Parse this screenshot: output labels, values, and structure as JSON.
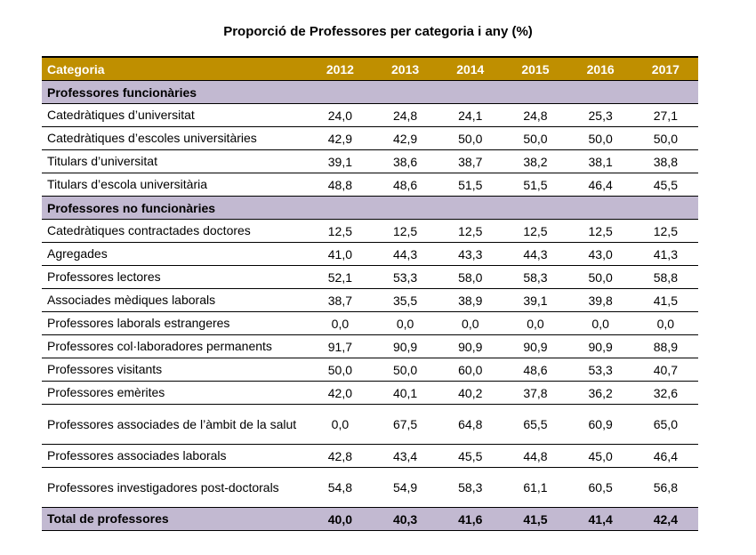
{
  "title": "Proporció de Professores per categoria i any (%)",
  "header": {
    "category": "Categoria",
    "years": [
      "2012",
      "2013",
      "2014",
      "2015",
      "2016",
      "2017"
    ]
  },
  "colors": {
    "header_bg": "#bf8f00",
    "section_bg": "#c2b9d1"
  },
  "sections": [
    {
      "label": "Professores funcionàries",
      "rows": [
        {
          "label": "Catedràtiques d’universitat",
          "values": [
            "24,0",
            "24,8",
            "24,1",
            "24,8",
            "25,3",
            "27,1"
          ]
        },
        {
          "label": "Catedràtiques d’escoles universitàries",
          "values": [
            "42,9",
            "42,9",
            "50,0",
            "50,0",
            "50,0",
            "50,0"
          ]
        },
        {
          "label": "Titulars d’universitat",
          "values": [
            "39,1",
            "38,6",
            "38,7",
            "38,2",
            "38,1",
            "38,8"
          ]
        },
        {
          "label": "Titulars d’escola universitària",
          "values": [
            "48,8",
            "48,6",
            "51,5",
            "51,5",
            "46,4",
            "45,5"
          ]
        }
      ]
    },
    {
      "label": "Professores no funcionàries",
      "rows": [
        {
          "label": "Catedràtiques contractades doctores",
          "values": [
            "12,5",
            "12,5",
            "12,5",
            "12,5",
            "12,5",
            "12,5"
          ]
        },
        {
          "label": "Agregades",
          "values": [
            "41,0",
            "44,3",
            "43,3",
            "44,3",
            "43,0",
            "41,3"
          ]
        },
        {
          "label": "Professores lectores",
          "values": [
            "52,1",
            "53,3",
            "58,0",
            "58,3",
            "50,0",
            "58,8"
          ]
        },
        {
          "label": "Associades mèdiques laborals",
          "values": [
            "38,7",
            "35,5",
            "38,9",
            "39,1",
            "39,8",
            "41,5"
          ]
        },
        {
          "label": "Professores laborals estrangeres",
          "values": [
            "0,0",
            "0,0",
            "0,0",
            "0,0",
            "0,0",
            "0,0"
          ]
        },
        {
          "label": "Professores col·laboradores permanents",
          "values": [
            "91,7",
            "90,9",
            "90,9",
            "90,9",
            "90,9",
            "88,9"
          ]
        },
        {
          "label": "Professores visitants",
          "values": [
            "50,0",
            "50,0",
            "60,0",
            "48,6",
            "53,3",
            "40,7"
          ]
        },
        {
          "label": "Professores emèrites",
          "values": [
            "42,0",
            "40,1",
            "40,2",
            "37,8",
            "36,2",
            "32,6"
          ]
        },
        {
          "label": "Professores associades de l’àmbit de la salut",
          "values": [
            "0,0",
            "67,5",
            "64,8",
            "65,5",
            "60,9",
            "65,0"
          ],
          "tall": true
        },
        {
          "label": "Professores associades laborals",
          "values": [
            "42,8",
            "43,4",
            "45,5",
            "44,8",
            "45,0",
            "46,4"
          ]
        },
        {
          "label": "Professores investigadores post-doctorals",
          "values": [
            "54,8",
            "54,9",
            "58,3",
            "61,1",
            "60,5",
            "56,8"
          ],
          "tall": true
        }
      ]
    }
  ],
  "total": {
    "label": "Total de professores",
    "values": [
      "40,0",
      "40,3",
      "41,6",
      "41,5",
      "41,4",
      "42,4"
    ]
  }
}
